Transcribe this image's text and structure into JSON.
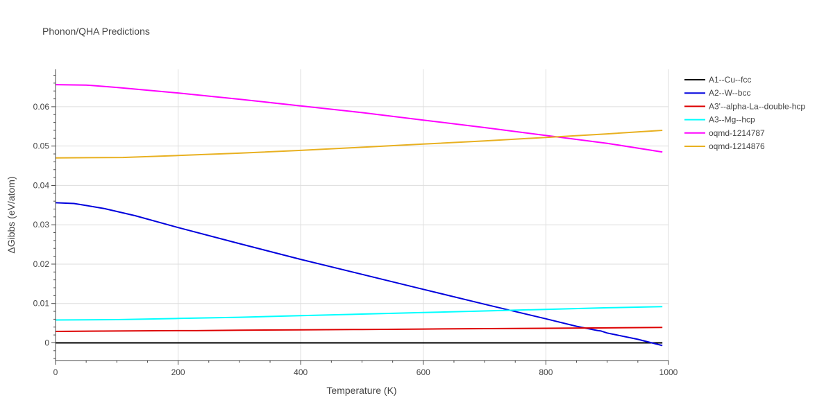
{
  "chart_data": {
    "type": "line",
    "title": "Phonon/QHA Predictions",
    "xlabel": "Temperature (K)",
    "ylabel": "ΔGibbs (eV/atom)",
    "xlim": [
      0,
      1000
    ],
    "ylim": [
      -0.0045,
      0.0695
    ],
    "xticks": [
      0,
      200,
      400,
      600,
      800,
      1000
    ],
    "yticks": [
      0,
      0.01,
      0.02,
      0.03,
      0.04,
      0.05,
      0.06
    ],
    "xtick_labels": [
      "0",
      "200",
      "400",
      "600",
      "800",
      "1000"
    ],
    "ytick_labels": [
      "0",
      "0.01",
      "0.02",
      "0.03",
      "0.04",
      "0.05",
      "0.06"
    ],
    "grid": true,
    "legend_position": "top-right-outside",
    "series": [
      {
        "name": "A1--Cu--fcc",
        "color": "#000000",
        "x": [
          0,
          990
        ],
        "y": [
          0,
          0
        ]
      },
      {
        "name": "A2--W--bcc",
        "color": "#0000dd",
        "x": [
          0,
          30,
          50,
          80,
          130,
          200,
          300,
          400,
          500,
          600,
          700,
          800,
          850,
          885,
          890,
          900,
          950,
          990
        ],
        "y": [
          0.0356,
          0.0354,
          0.0349,
          0.0341,
          0.0323,
          0.0293,
          0.0252,
          0.0212,
          0.0174,
          0.0136,
          0.0098,
          0.0061,
          0.0042,
          0.0031,
          0.003,
          0.0025,
          0.0009,
          -0.0007
        ]
      },
      {
        "name": "A3'--alpha-La--double-hcp",
        "color": "#dd0000",
        "x": [
          0,
          100,
          200,
          230,
          300,
          400,
          500,
          600,
          700,
          800,
          900,
          990
        ],
        "y": [
          0.0029,
          0.003,
          0.0031,
          0.0031,
          0.0032,
          0.0033,
          0.0034,
          0.0035,
          0.0036,
          0.0037,
          0.0038,
          0.0039
        ]
      },
      {
        "name": "A3--Mg--hcp",
        "color": "#00ffff",
        "x": [
          0,
          100,
          200,
          300,
          400,
          500,
          600,
          700,
          800,
          900,
          990
        ],
        "y": [
          0.0058,
          0.0059,
          0.0062,
          0.0065,
          0.0069,
          0.0073,
          0.0077,
          0.0081,
          0.0085,
          0.0089,
          0.0092
        ]
      },
      {
        "name": "oqmd-1214787",
        "color": "#ff00ff",
        "x": [
          0,
          50,
          100,
          200,
          300,
          400,
          500,
          600,
          700,
          800,
          900,
          990
        ],
        "y": [
          0.0656,
          0.0655,
          0.0649,
          0.0635,
          0.0619,
          0.0602,
          0.0585,
          0.0566,
          0.0547,
          0.0527,
          0.0507,
          0.0485
        ]
      },
      {
        "name": "oqmd-1214876",
        "color": "#e8b020",
        "x": [
          0,
          110,
          200,
          300,
          400,
          500,
          600,
          700,
          800,
          900,
          990
        ],
        "y": [
          0.047,
          0.0471,
          0.0476,
          0.0482,
          0.0489,
          0.0497,
          0.0505,
          0.0513,
          0.0522,
          0.0531,
          0.054
        ]
      }
    ]
  }
}
